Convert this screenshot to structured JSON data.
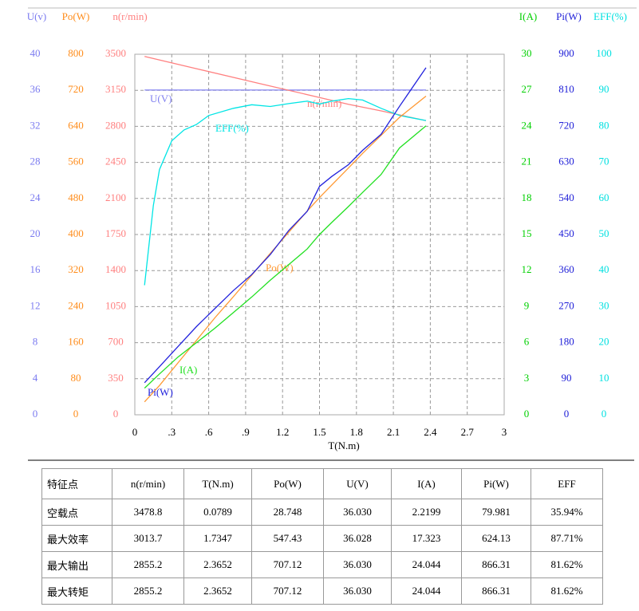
{
  "chart_data": {
    "type": "line",
    "x_label": "T(N.m)",
    "xlim": [
      0,
      3
    ],
    "xticks": [
      0,
      {
        "value": 0.3,
        "label": ".3"
      },
      {
        "value": 0.6,
        "label": ".6"
      },
      {
        "value": 0.9,
        "label": ".9"
      },
      1.2,
      1.5,
      1.8,
      2.1,
      2.4,
      2.7,
      3
    ],
    "grid": true,
    "y_axes": [
      {
        "label": "U(v)",
        "color": "#7b7bf0",
        "side": "left",
        "ylim": [
          0,
          40
        ],
        "yticks": [
          0,
          4,
          8,
          12,
          16,
          20,
          24,
          28,
          32,
          36,
          40
        ]
      },
      {
        "label": "Po(W)",
        "color": "#ff8c1a",
        "side": "left",
        "ylim": [
          0,
          800
        ],
        "yticks": [
          0,
          80,
          160,
          240,
          320,
          400,
          480,
          560,
          640,
          720,
          800
        ]
      },
      {
        "label": "n(r/min)",
        "color": "#ff7f7f",
        "side": "left",
        "ylim": [
          0,
          3500
        ],
        "yticks": [
          0,
          350,
          700,
          1050,
          1400,
          1750,
          2100,
          2450,
          2800,
          3150,
          3500
        ]
      },
      {
        "label": "I(A)",
        "color": "#00d000",
        "side": "right",
        "ylim": [
          0,
          30
        ],
        "yticks": [
          0,
          3,
          6,
          9,
          12,
          15,
          18,
          21,
          24,
          27,
          30
        ]
      },
      {
        "label": "Pi(W)",
        "color": "#2020d8",
        "side": "right",
        "ylim": [
          0,
          900
        ],
        "yticks": [
          0,
          90,
          180,
          270,
          360,
          450,
          540,
          630,
          720,
          810,
          900
        ]
      },
      {
        "label": "EFF(%)",
        "color": "#00e0e0",
        "side": "right",
        "ylim": [
          0,
          100
        ],
        "yticks": [
          0,
          10,
          20,
          30,
          40,
          50,
          60,
          70,
          80,
          90,
          100
        ]
      }
    ],
    "series": [
      {
        "name": "U(V)",
        "color": "#8080f0",
        "axis": 0,
        "x": [
          0.0789,
          0.5,
          1.0,
          1.5,
          1.7347,
          2.0,
          2.3652
        ],
        "values": [
          36.03,
          36.03,
          36.03,
          36.03,
          36.028,
          36.03,
          36.03
        ]
      },
      {
        "name": "n(r/min)",
        "color": "#ff8080",
        "axis": 2,
        "x": [
          0.0789,
          0.5,
          1.0,
          1.5,
          1.7347,
          2.0,
          2.3652
        ],
        "values": [
          3478.8,
          3360,
          3220,
          3080,
          3013.7,
          2950,
          2855.2
        ]
      },
      {
        "name": "EFF(%)",
        "color": "#00e5e5",
        "axis": 5,
        "x": [
          0.0789,
          0.15,
          0.2,
          0.3,
          0.4,
          0.5,
          0.6,
          0.8,
          0.95,
          1.1,
          1.25,
          1.4,
          1.5,
          1.6,
          1.7347,
          1.85,
          2.0,
          2.15,
          2.3652
        ],
        "values": [
          35.94,
          58,
          68,
          76,
          79,
          80.5,
          83,
          85,
          86,
          85.5,
          86.3,
          87,
          86.2,
          87,
          87.71,
          87.3,
          85,
          83,
          81.62
        ]
      },
      {
        "name": "Po(W)",
        "color": "#ff9933",
        "axis": 1,
        "x": [
          0.0789,
          0.2,
          0.35,
          0.5,
          0.65,
          0.8,
          0.95,
          1.1,
          1.25,
          1.4,
          1.5,
          1.6,
          1.7347,
          1.85,
          2.0,
          2.15,
          2.3652
        ],
        "values": [
          28.748,
          65,
          115,
          165,
          215,
          262,
          310,
          358,
          405,
          452,
          482,
          510,
          547.43,
          580,
          620,
          660,
          707.12
        ]
      },
      {
        "name": "I(A)",
        "color": "#22e022",
        "axis": 3,
        "x": [
          0.0789,
          0.2,
          0.35,
          0.5,
          0.65,
          0.8,
          0.95,
          1.1,
          1.25,
          1.4,
          1.5,
          1.6,
          1.7347,
          1.85,
          2.0,
          2.15,
          2.3652
        ],
        "values": [
          2.2199,
          3.4,
          4.8,
          6.0,
          7.2,
          8.5,
          9.8,
          11.2,
          12.5,
          13.8,
          15.0,
          16.0,
          17.323,
          18.5,
          20.0,
          22.2,
          24.044
        ]
      },
      {
        "name": "Pi(W)",
        "color": "#2222dd",
        "axis": 4,
        "x": [
          0.0789,
          0.2,
          0.35,
          0.5,
          0.65,
          0.8,
          0.95,
          1.1,
          1.25,
          1.4,
          1.5,
          1.6,
          1.7347,
          1.85,
          2.0,
          2.15,
          2.3652
        ],
        "values": [
          79.981,
          120,
          170,
          220,
          265,
          310,
          350,
          400,
          460,
          508,
          570,
          595,
          624.13,
          660,
          700,
          770,
          866.31
        ]
      }
    ]
  },
  "table": {
    "header": [
      "特征点",
      "n(r/min)",
      "T(N.m)",
      "Po(W)",
      "U(V)",
      "I(A)",
      "Pi(W)",
      "EFF"
    ],
    "rows": [
      [
        "空载点",
        "3478.8",
        "0.0789",
        "28.748",
        "36.030",
        "2.2199",
        "79.981",
        "35.94%"
      ],
      [
        "最大效率",
        "3013.7",
        "1.7347",
        "547.43",
        "36.028",
        "17.323",
        "624.13",
        "87.71%"
      ],
      [
        "最大输出",
        "2855.2",
        "2.3652",
        "707.12",
        "36.030",
        "24.044",
        "866.31",
        "81.62%"
      ],
      [
        "最大转矩",
        "2855.2",
        "2.3652",
        "707.12",
        "36.030",
        "24.044",
        "866.31",
        "81.62%"
      ]
    ]
  }
}
